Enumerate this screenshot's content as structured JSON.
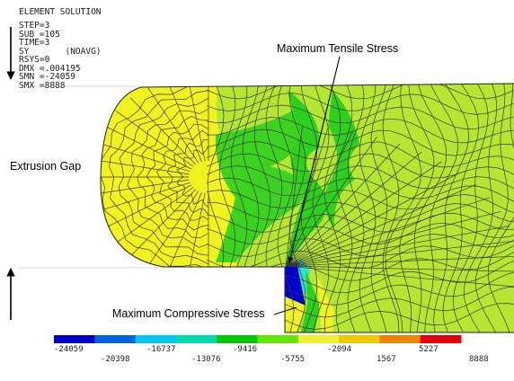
{
  "header": {
    "title": "ELEMENT SOLUTION",
    "lines": [
      "STEP=3",
      "SUB =105",
      "TIME=3",
      "SY       (NOAVG)",
      "RSYS=0",
      "DMX =.004195",
      "SMN =-24059",
      "SMX =8888"
    ]
  },
  "annotations": {
    "max_tensile": "Maximum Tensile Stress",
    "extrusion_gap": "Extrusion Gap",
    "max_compressive": "Maximum Compressive Stress"
  },
  "legend": {
    "colors": [
      "#0000c8",
      "#0064dc",
      "#00c8f0",
      "#00dcaa",
      "#00c800",
      "#64e600",
      "#f0f032",
      "#f0c800",
      "#f08200",
      "#e60000"
    ],
    "tick_labels_top": [
      "-24059",
      "-16737",
      "-9416",
      "-2094",
      "5227"
    ],
    "tick_labels_bottom": [
      "-20398",
      "-13076",
      "-5755",
      "1567",
      "8888"
    ]
  },
  "colors": {
    "mesh_yellow": "#f2f21e",
    "mesh_lightgreen": "#b4e632",
    "mesh_green": "#2ed01e",
    "mesh_cyan": "#30e6c8",
    "mesh_blue": "#0000d0",
    "mesh_line": "#3a3a3a"
  }
}
